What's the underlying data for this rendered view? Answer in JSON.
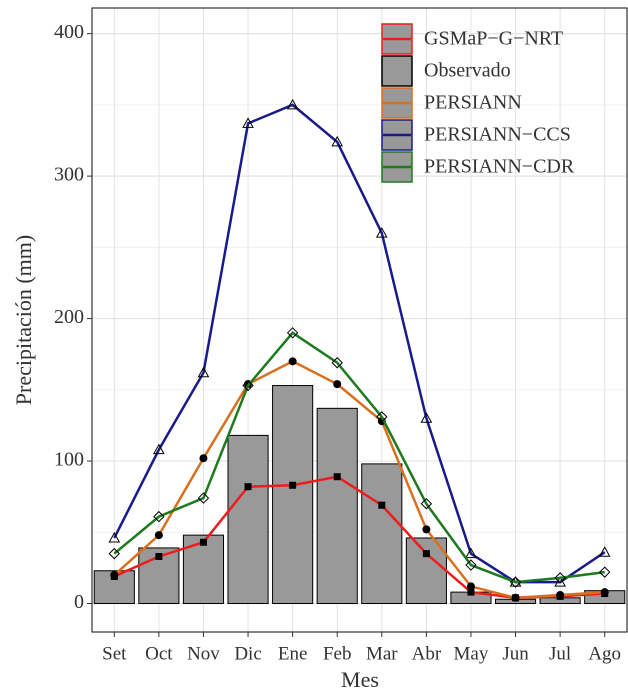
{
  "chart_data": {
    "type": "bar",
    "x_label": "Mes",
    "y_label": "Precipitación  (mm)",
    "categories": [
      "Set",
      "Oct",
      "Nov",
      "Dic",
      "Ene",
      "Feb",
      "Mar",
      "Abr",
      "May",
      "Jun",
      "Jul",
      "Ago"
    ],
    "series": [
      {
        "name": "GSMaP−G−NRT",
        "style": "line",
        "marker": "square",
        "color": "#ee1c1c",
        "values": [
          19,
          33,
          43,
          82,
          83,
          89,
          69,
          35,
          8,
          4,
          5,
          7
        ]
      },
      {
        "name": "Observado",
        "style": "bar",
        "color": "#999999",
        "values": [
          23,
          39,
          48,
          118,
          153,
          137,
          98,
          46,
          8,
          3,
          4,
          9
        ]
      },
      {
        "name": "PERSIANN",
        "style": "line",
        "marker": "circle",
        "color": "#d9701e",
        "values": [
          20,
          48,
          102,
          154,
          170,
          154,
          128,
          52,
          12,
          4,
          6,
          8
        ]
      },
      {
        "name": "PERSIANN−CCS",
        "style": "line",
        "marker": "triangle",
        "color": "#1a1a8c",
        "values": [
          46,
          108,
          162,
          337,
          350,
          324,
          260,
          130,
          35,
          15,
          15,
          36
        ]
      },
      {
        "name": "PERSIANN−CDR",
        "style": "line",
        "marker": "diamond",
        "color": "#1e7a1e",
        "values": [
          35,
          61,
          74,
          153,
          190,
          169,
          131,
          70,
          27,
          15,
          18,
          22
        ]
      }
    ],
    "ylim": [
      -20,
      418
    ],
    "yticks": [
      0,
      100,
      200,
      300,
      400
    ],
    "minor_yticks": [
      50,
      150,
      250,
      350
    ],
    "grid": true,
    "legend": "top-right"
  }
}
